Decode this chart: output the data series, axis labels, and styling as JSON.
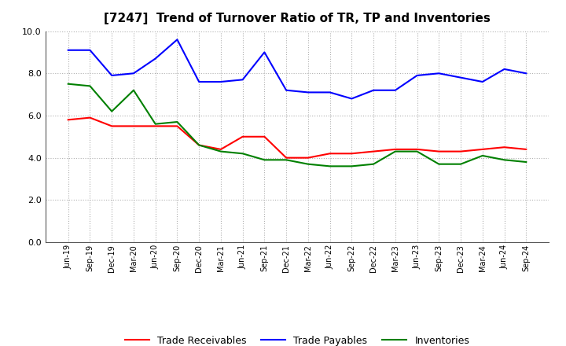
{
  "title": "[7247]  Trend of Turnover Ratio of TR, TP and Inventories",
  "x_labels": [
    "Jun-19",
    "Sep-19",
    "Dec-19",
    "Mar-20",
    "Jun-20",
    "Sep-20",
    "Dec-20",
    "Mar-21",
    "Jun-21",
    "Sep-21",
    "Dec-21",
    "Mar-22",
    "Jun-22",
    "Sep-22",
    "Dec-22",
    "Mar-23",
    "Jun-23",
    "Sep-23",
    "Dec-23",
    "Mar-24",
    "Jun-24",
    "Sep-24"
  ],
  "trade_receivables": [
    5.8,
    5.9,
    5.5,
    5.5,
    5.5,
    5.5,
    4.6,
    4.4,
    5.0,
    5.0,
    4.0,
    4.0,
    4.2,
    4.2,
    4.3,
    4.4,
    4.4,
    4.3,
    4.3,
    4.4,
    4.5,
    4.4
  ],
  "trade_payables": [
    9.1,
    9.1,
    7.9,
    8.0,
    8.7,
    9.6,
    7.6,
    7.6,
    7.7,
    9.0,
    7.2,
    7.1,
    7.1,
    6.8,
    7.2,
    7.2,
    7.9,
    8.0,
    7.8,
    7.6,
    8.2,
    8.0
  ],
  "inventories": [
    7.5,
    7.4,
    6.2,
    7.2,
    5.6,
    5.7,
    4.6,
    4.3,
    4.2,
    3.9,
    3.9,
    3.7,
    3.6,
    3.6,
    3.7,
    4.3,
    4.3,
    3.7,
    3.7,
    4.1,
    3.9,
    3.8
  ],
  "tr_color": "#ff0000",
  "tp_color": "#0000ff",
  "inv_color": "#008000",
  "ylim": [
    0.0,
    10.0
  ],
  "yticks": [
    0.0,
    2.0,
    4.0,
    6.0,
    8.0,
    10.0
  ],
  "legend_labels": [
    "Trade Receivables",
    "Trade Payables",
    "Inventories"
  ],
  "background_color": "#ffffff",
  "grid_color": "#b0b0b0"
}
